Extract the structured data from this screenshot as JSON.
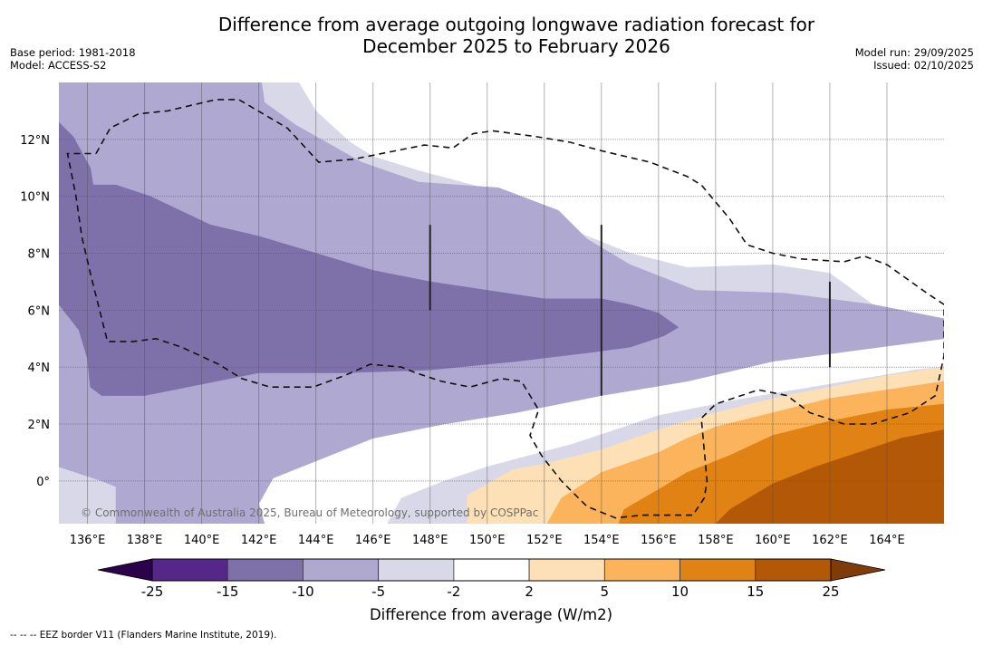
{
  "header": {
    "title_line1": "Difference from average outgoing longwave radiation forecast for",
    "title_line2": "December 2025 to February 2026",
    "base_period": "Base period: 1981-2018",
    "model": "Model: ACCESS-S2",
    "model_run": "Model run: 29/09/2025",
    "issued": "Issued: 02/10/2025"
  },
  "map": {
    "lon_range": [
      135.0,
      166.0
    ],
    "lat_range": [
      -1.5,
      14.0
    ],
    "lon_ticks": [
      136,
      138,
      140,
      142,
      144,
      146,
      148,
      150,
      152,
      154,
      156,
      158,
      160,
      162,
      164
    ],
    "lon_tick_labels": [
      "136°E",
      "138°E",
      "140°E",
      "142°E",
      "144°E",
      "146°E",
      "148°E",
      "150°E",
      "152°E",
      "154°E",
      "156°E",
      "158°E",
      "160°E",
      "162°E",
      "164°E"
    ],
    "lat_ticks": [
      0,
      2,
      4,
      6,
      8,
      10,
      12
    ],
    "lat_tick_labels": [
      "0°",
      "2°N",
      "4°N",
      "6°N",
      "8°N",
      "10°N",
      "12°N"
    ],
    "copyright": "© Commonwealth of Australia 2025, Bureau of Meteorology, supported by COSPPac",
    "background_class": "-2 to 2",
    "contour_regions": [
      {
        "name": "minus-5-to-minus-2",
        "color": "#d8d8e9",
        "poly": [
          [
            135,
            -1.5
          ],
          [
            135,
            0.5
          ],
          [
            136.5,
            0
          ],
          [
            137,
            -0.2
          ],
          [
            137,
            -1.5
          ]
        ]
      },
      {
        "name": "minus-5-to-minus-2-north",
        "color": "#d8d8e9",
        "poly": [
          [
            142.1,
            14
          ],
          [
            142.2,
            13.3
          ],
          [
            143.3,
            12.5
          ],
          [
            145.6,
            11.2
          ],
          [
            147.6,
            10.5
          ],
          [
            150.4,
            10.3
          ],
          [
            152.5,
            9.5
          ],
          [
            153.5,
            8.5
          ],
          [
            155,
            7.6
          ],
          [
            157.3,
            6.7
          ],
          [
            159,
            6.6
          ],
          [
            160.4,
            6.6
          ],
          [
            163.5,
            6.2
          ],
          [
            166,
            5.7
          ],
          [
            166,
            4.0
          ],
          [
            165,
            3.9
          ],
          [
            162,
            3.4
          ],
          [
            159,
            2.9
          ],
          [
            156,
            2.3
          ],
          [
            153,
            1.3
          ],
          [
            150,
            0.5
          ],
          [
            148.5,
            0
          ],
          [
            147,
            -0.6
          ],
          [
            146.5,
            -1.5
          ],
          [
            150,
            -1.5
          ],
          [
            150.1,
            -1.5
          ],
          [
            149.3,
            -0.5
          ],
          [
            150.9,
            0.4
          ],
          [
            152,
            0.6
          ],
          [
            154,
            1.1
          ],
          [
            156,
            1.8
          ],
          [
            158,
            2.4
          ],
          [
            160,
            2.9
          ],
          [
            162,
            3.3
          ],
          [
            164,
            3.7
          ],
          [
            166,
            4.0
          ],
          [
            166,
            5.7
          ],
          [
            163.5,
            6.2
          ],
          [
            162,
            7.3
          ],
          [
            160,
            7.6
          ],
          [
            157,
            7.5
          ],
          [
            155,
            8
          ],
          [
            153,
            8.8
          ],
          [
            150.6,
            10.1
          ],
          [
            147.6,
            10.9
          ],
          [
            146,
            11.4
          ],
          [
            145.2,
            11.9
          ],
          [
            144,
            13
          ],
          [
            143.4,
            14
          ]
        ]
      },
      {
        "name": "minus-10-to-minus-5",
        "color": "#afa8d0",
        "poly": [
          [
            135,
            14
          ],
          [
            142.1,
            14
          ],
          [
            142.2,
            13.3
          ],
          [
            143.3,
            12.5
          ],
          [
            145.6,
            11.2
          ],
          [
            147.6,
            10.5
          ],
          [
            150.4,
            10.3
          ],
          [
            152.5,
            9.5
          ],
          [
            153.5,
            8.5
          ],
          [
            155,
            7.6
          ],
          [
            157.3,
            6.7
          ],
          [
            160.4,
            6.6
          ],
          [
            163.5,
            6.2
          ],
          [
            166,
            5.7
          ],
          [
            166,
            5.0
          ],
          [
            163,
            4.6
          ],
          [
            160,
            4.2
          ],
          [
            157,
            3.5
          ],
          [
            154,
            3.0
          ],
          [
            151,
            2.4
          ],
          [
            148.5,
            2.0
          ],
          [
            146,
            1.5
          ],
          [
            144,
            0.7
          ],
          [
            142.5,
            0.1
          ],
          [
            142,
            -0.8
          ],
          [
            142.2,
            -1.5
          ],
          [
            137,
            -1.5
          ],
          [
            137,
            -0.2
          ],
          [
            136.5,
            0
          ],
          [
            135,
            0.5
          ]
        ]
      },
      {
        "name": "minus-15-to-minus-10",
        "color": "#7e71aa",
        "poly": [
          [
            135,
            12.6
          ],
          [
            135.5,
            12.1
          ],
          [
            136.1,
            11.0
          ],
          [
            136.2,
            10.4
          ],
          [
            137,
            10.4
          ],
          [
            138.2,
            10.0
          ],
          [
            140.3,
            9.0
          ],
          [
            142,
            8.6
          ],
          [
            144,
            8.0
          ],
          [
            146,
            7.4
          ],
          [
            148,
            7.0
          ],
          [
            150,
            6.7
          ],
          [
            152,
            6.4
          ],
          [
            154,
            6.4
          ],
          [
            155,
            6.2
          ],
          [
            156,
            5.9
          ],
          [
            156.7,
            5.4
          ],
          [
            156.2,
            5.1
          ],
          [
            155,
            4.7
          ],
          [
            153.5,
            4.5
          ],
          [
            151,
            4.2
          ],
          [
            148,
            3.9
          ],
          [
            145,
            3.8
          ],
          [
            142,
            3.8
          ],
          [
            140.5,
            3.5
          ],
          [
            138,
            3.0
          ],
          [
            136.5,
            3.0
          ],
          [
            136.1,
            3.3
          ],
          [
            136,
            4.3
          ],
          [
            135.7,
            5.3
          ],
          [
            135,
            6.2
          ]
        ]
      },
      {
        "name": "plus-2-to-plus-5",
        "color": "#fde0b6",
        "poly": [
          [
            149.3,
            -1.5
          ],
          [
            149.3,
            -0.5
          ],
          [
            150.9,
            0.4
          ],
          [
            152,
            0.6
          ],
          [
            154,
            1.1
          ],
          [
            156,
            1.8
          ],
          [
            158,
            2.4
          ],
          [
            160,
            2.9
          ],
          [
            162,
            3.3
          ],
          [
            164,
            3.7
          ],
          [
            166,
            4.0
          ],
          [
            166,
            -1.5
          ]
        ]
      },
      {
        "name": "plus-5-to-plus-10",
        "color": "#fbb45c",
        "poly": [
          [
            152.1,
            -1.5
          ],
          [
            152.6,
            -0.6
          ],
          [
            154,
            0.3
          ],
          [
            156,
            1.0
          ],
          [
            157,
            1.5
          ],
          [
            158,
            1.9
          ],
          [
            160,
            2.4
          ],
          [
            162,
            2.9
          ],
          [
            164,
            3.2
          ],
          [
            166,
            3.5
          ],
          [
            166,
            -1.5
          ]
        ]
      },
      {
        "name": "plus-10-to-plus-15",
        "color": "#e08214",
        "poly": [
          [
            154.6,
            -1.5
          ],
          [
            154.8,
            -1.0
          ],
          [
            156,
            -0.3
          ],
          [
            157,
            0.3
          ],
          [
            158.5,
            0.9
          ],
          [
            160,
            1.6
          ],
          [
            162,
            2.1
          ],
          [
            164,
            2.5
          ],
          [
            166,
            2.7
          ],
          [
            166,
            -1.5
          ]
        ]
      },
      {
        "name": "plus-15-to-plus-25",
        "color": "#b35806",
        "poly": [
          [
            158,
            -1.5
          ],
          [
            158.5,
            -1.0
          ],
          [
            160,
            -0.1
          ],
          [
            161.5,
            0.5
          ],
          [
            163,
            1.0
          ],
          [
            164.5,
            1.5
          ],
          [
            166,
            1.8
          ],
          [
            166,
            -1.5
          ]
        ]
      }
    ],
    "eez_border": [
      [
        136.3,
        11.5
      ],
      [
        136.8,
        12.4
      ],
      [
        137.8,
        12.9
      ],
      [
        138.8,
        13.0
      ],
      [
        140.5,
        13.4
      ],
      [
        141.3,
        13.4
      ],
      [
        143,
        12.4
      ],
      [
        144.1,
        11.2
      ],
      [
        145.3,
        11.3
      ],
      [
        147.8,
        11.8
      ],
      [
        148.8,
        11.7
      ],
      [
        149.5,
        12.2
      ],
      [
        150.2,
        12.3
      ],
      [
        151.7,
        12.1
      ],
      [
        152.9,
        11.9
      ],
      [
        154,
        11.6
      ],
      [
        155.7,
        11.2
      ],
      [
        157,
        10.7
      ],
      [
        157.5,
        10.4
      ],
      [
        158.5,
        9.2
      ],
      [
        159.1,
        8.3
      ],
      [
        160,
        8.0
      ],
      [
        161,
        7.8
      ],
      [
        162.5,
        7.7
      ],
      [
        163.2,
        7.9
      ],
      [
        164,
        7.6
      ],
      [
        165.4,
        6.6
      ],
      [
        166.0,
        6.2
      ],
      [
        166.0,
        4.4
      ],
      [
        165.7,
        3.0
      ],
      [
        164.8,
        2.4
      ],
      [
        163.5,
        2.0
      ],
      [
        162.5,
        2.0
      ],
      [
        161.3,
        2.4
      ],
      [
        160.5,
        3.0
      ],
      [
        159.5,
        3.2
      ],
      [
        158,
        2.7
      ],
      [
        157.5,
        2.2
      ],
      [
        157.7,
        0
      ],
      [
        157.6,
        -0.6
      ],
      [
        157.2,
        -1.2
      ],
      [
        155.4,
        -1.2
      ],
      [
        154.5,
        -1.3
      ],
      [
        153.5,
        -0.9
      ],
      [
        152.6,
        0
      ],
      [
        151.9,
        0.9
      ],
      [
        151.5,
        1.6
      ],
      [
        151.8,
        2.5
      ],
      [
        151.2,
        3.5
      ],
      [
        150.5,
        3.6
      ],
      [
        149.4,
        3.3
      ],
      [
        148.4,
        3.5
      ],
      [
        147.5,
        3.8
      ],
      [
        147,
        4.0
      ],
      [
        145.9,
        4.1
      ],
      [
        145,
        3.7
      ],
      [
        143.9,
        3.3
      ],
      [
        142.4,
        3.3
      ],
      [
        141.4,
        3.6
      ],
      [
        140.6,
        4.1
      ],
      [
        139.3,
        4.7
      ],
      [
        138.4,
        5.0
      ],
      [
        137.6,
        4.9
      ],
      [
        136.7,
        4.9
      ],
      [
        136.1,
        7.3
      ],
      [
        135.8,
        8.6
      ],
      [
        135.6,
        10.0
      ],
      [
        135.3,
        11.5
      ],
      [
        136.3,
        11.5
      ]
    ],
    "vertical_lines": [
      {
        "lon": 148.0,
        "lat_from": 6.0,
        "lat_to": 9.0
      },
      {
        "lon": 154.0,
        "lat_from": 3.0,
        "lat_to": 9.0
      },
      {
        "lon": 162.0,
        "lat_from": 4.0,
        "lat_to": 7.0
      }
    ]
  },
  "colorbar": {
    "title": "Difference from average (W/m2)",
    "bounds": [
      -25,
      -15,
      -10,
      -5,
      -2,
      2,
      5,
      10,
      15,
      25
    ],
    "tick_labels": [
      "-25",
      "-15",
      "-10",
      "-5",
      "-2",
      "2",
      "5",
      "10",
      "15",
      "25"
    ],
    "colors": [
      "#542788",
      "#7e71aa",
      "#afa8d0",
      "#d8d8e9",
      "#ffffff",
      "#fde0b6",
      "#fbb45c",
      "#e08214",
      "#b35806"
    ],
    "under_color": "#2d004b",
    "over_color": "#7f3b08"
  },
  "footnote": "--  --  -- EEZ border V11 (Flanders Marine Institute, 2019)."
}
